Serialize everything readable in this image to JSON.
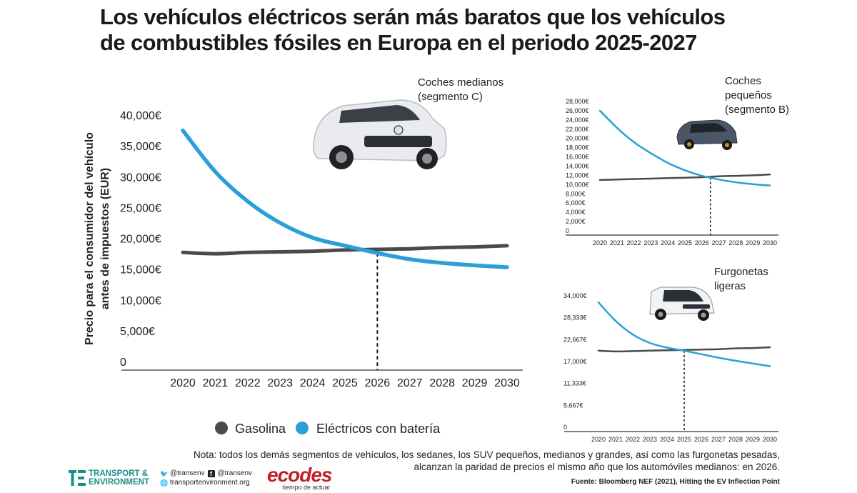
{
  "title": {
    "line1": "Los vehículos eléctricos serán más baratos que los vehículos",
    "line2": "de combustibles fósiles en Europa en el periodo 2025-2027"
  },
  "colors": {
    "gasoline": "#4a4a4a",
    "electric": "#2a9fd8",
    "crossover": "#111111"
  },
  "legend": {
    "gasoline": "Gasolina",
    "electric": "Eléctricos con batería"
  },
  "chart_data": [
    {
      "type": "line",
      "panel": "Coches medianos (segmento C)",
      "panel_lines": [
        "Coches medianos",
        "(segmento C)"
      ],
      "ylabel_lines": [
        "Precio para el consumidor del vehículo",
        "antes de impuestos (EUR)"
      ],
      "x": [
        2020,
        2021,
        2022,
        2023,
        2024,
        2025,
        2026,
        2027,
        2028,
        2029,
        2030
      ],
      "yticks": [
        0,
        5000,
        10000,
        15000,
        20000,
        25000,
        30000,
        35000,
        40000
      ],
      "ytick_labels": [
        "0",
        "5,000€",
        "10,000€",
        "15,000€",
        "20,000€",
        "25,000€",
        "30,000€",
        "35,000€",
        "40,000€"
      ],
      "ylim": [
        0,
        40000
      ],
      "crossover_x": 2026,
      "series": [
        {
          "name": "Gasolina",
          "values": [
            17700,
            17500,
            17700,
            17800,
            17900,
            18100,
            18200,
            18300,
            18500,
            18600,
            18800
          ]
        },
        {
          "name": "Eléctricos con batería",
          "values": [
            37500,
            30800,
            26000,
            22500,
            20100,
            18800,
            17600,
            16600,
            16000,
            15600,
            15300
          ]
        }
      ]
    },
    {
      "type": "line",
      "panel": "Coches pequeños (segmento B)",
      "panel_lines": [
        "Coches",
        "pequeños",
        "(segmento B)"
      ],
      "x": [
        2020,
        2021,
        2022,
        2023,
        2024,
        2025,
        2026,
        2027,
        2028,
        2029,
        2030
      ],
      "yticks": [
        0,
        2000,
        4000,
        6000,
        8000,
        10000,
        12000,
        14000,
        16000,
        18000,
        20000,
        22000,
        24000,
        26000,
        28000
      ],
      "ytick_labels": [
        "0",
        "2,000€",
        "4,000€",
        "6,000€",
        "8,000€",
        "10,000€",
        "12,000€",
        "14,000€",
        "16,000€",
        "18,000€",
        "20,000€",
        "22,000€",
        "24,000€",
        "26,000€",
        "28,000€"
      ],
      "ylim": [
        0,
        28000
      ],
      "crossover_x": 2026.5,
      "series": [
        {
          "name": "Gasolina",
          "values": [
            11000,
            11100,
            11200,
            11300,
            11400,
            11500,
            11600,
            11800,
            11900,
            12000,
            12200
          ]
        },
        {
          "name": "Eléctricos con batería",
          "values": [
            26000,
            22300,
            19200,
            16800,
            14700,
            13100,
            11900,
            11100,
            10500,
            10100,
            9800
          ]
        }
      ]
    },
    {
      "type": "line",
      "panel": "Furgonetas ligeras",
      "panel_lines": [
        "Furgonetas",
        "ligeras"
      ],
      "x": [
        2020,
        2021,
        2022,
        2023,
        2024,
        2025,
        2026,
        2027,
        2028,
        2029,
        2030
      ],
      "yticks": [
        0,
        5667,
        11333,
        17000,
        22667,
        28333,
        34000
      ],
      "ytick_labels": [
        "0",
        "5,667€",
        "11,333€",
        "17,000€",
        "22,667€",
        "28,333€",
        "34,000€"
      ],
      "ylim": [
        0,
        34000
      ],
      "crossover_x": 2025,
      "series": [
        {
          "name": "Gasolina",
          "values": [
            19800,
            19600,
            19700,
            19800,
            19900,
            20000,
            20100,
            20200,
            20400,
            20500,
            20700
          ]
        },
        {
          "name": "Eléctricos con batería",
          "values": [
            32300,
            27500,
            24000,
            21800,
            20600,
            19800,
            18900,
            18000,
            17200,
            16500,
            15800
          ]
        }
      ]
    }
  ],
  "note": {
    "line1": "Nota: todos los demás segmentos de vehículos, los sedanes, los SUV pequeños, medianos y grandes, así como las furgonetas pesadas,",
    "line2": "alcanzan la paridad de precios el mismo año que los automóviles medianos: en 2026."
  },
  "source": "Fuente: Bloomberg NEF (2021), Hitting the EV Inflection Point",
  "logos": {
    "te_line1": "TRANSPORT &",
    "te_line2": "ENVIRONMENT",
    "twitter": "@transenv",
    "facebook": "@transenv",
    "web": "transportenvironment.org",
    "ecodes": "ecodes",
    "ecodes_tagline": "tiempo de actuar"
  }
}
